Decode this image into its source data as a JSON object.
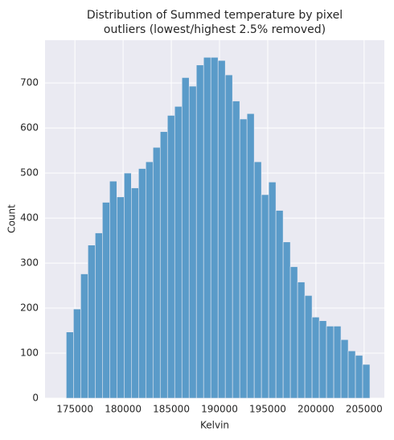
{
  "chart_data": {
    "type": "histogram",
    "title": [
      "Distribution of Summed temperature by pixel",
      "outliers (lowest/highest 2.5% removed)"
    ],
    "x_label": "Kelvin",
    "y_label": "Count",
    "bins": [
      174100,
      174850,
      175600,
      176350,
      177100,
      177850,
      178600,
      179350,
      180100,
      180850,
      181600,
      182350,
      183100,
      183850,
      184600,
      185350,
      186100,
      186850,
      187600,
      188350,
      189100,
      189850,
      190600,
      191350,
      192100,
      192850,
      193600,
      194350,
      195100,
      195850,
      196600,
      197350,
      198100,
      198850,
      199600,
      200350,
      201100,
      201850,
      202600,
      203350,
      204100,
      204850,
      205600
    ],
    "values": [
      147,
      198,
      276,
      340,
      367,
      435,
      482,
      447,
      500,
      467,
      510,
      525,
      557,
      592,
      628,
      648,
      712,
      693,
      740,
      757,
      757,
      750,
      718,
      660,
      620,
      632,
      525,
      452,
      480,
      417,
      347,
      292,
      258,
      228,
      180,
      172,
      160,
      160,
      130,
      105,
      95,
      75
    ],
    "color": "#5a9bc9",
    "xlim": [
      171900,
      207100
    ],
    "ylim": [
      0,
      795
    ],
    "xticks": [
      175000,
      180000,
      185000,
      190000,
      195000,
      200000,
      205000
    ],
    "yticks": [
      0,
      100,
      200,
      300,
      400,
      500,
      600,
      700
    ],
    "grid": true
  }
}
